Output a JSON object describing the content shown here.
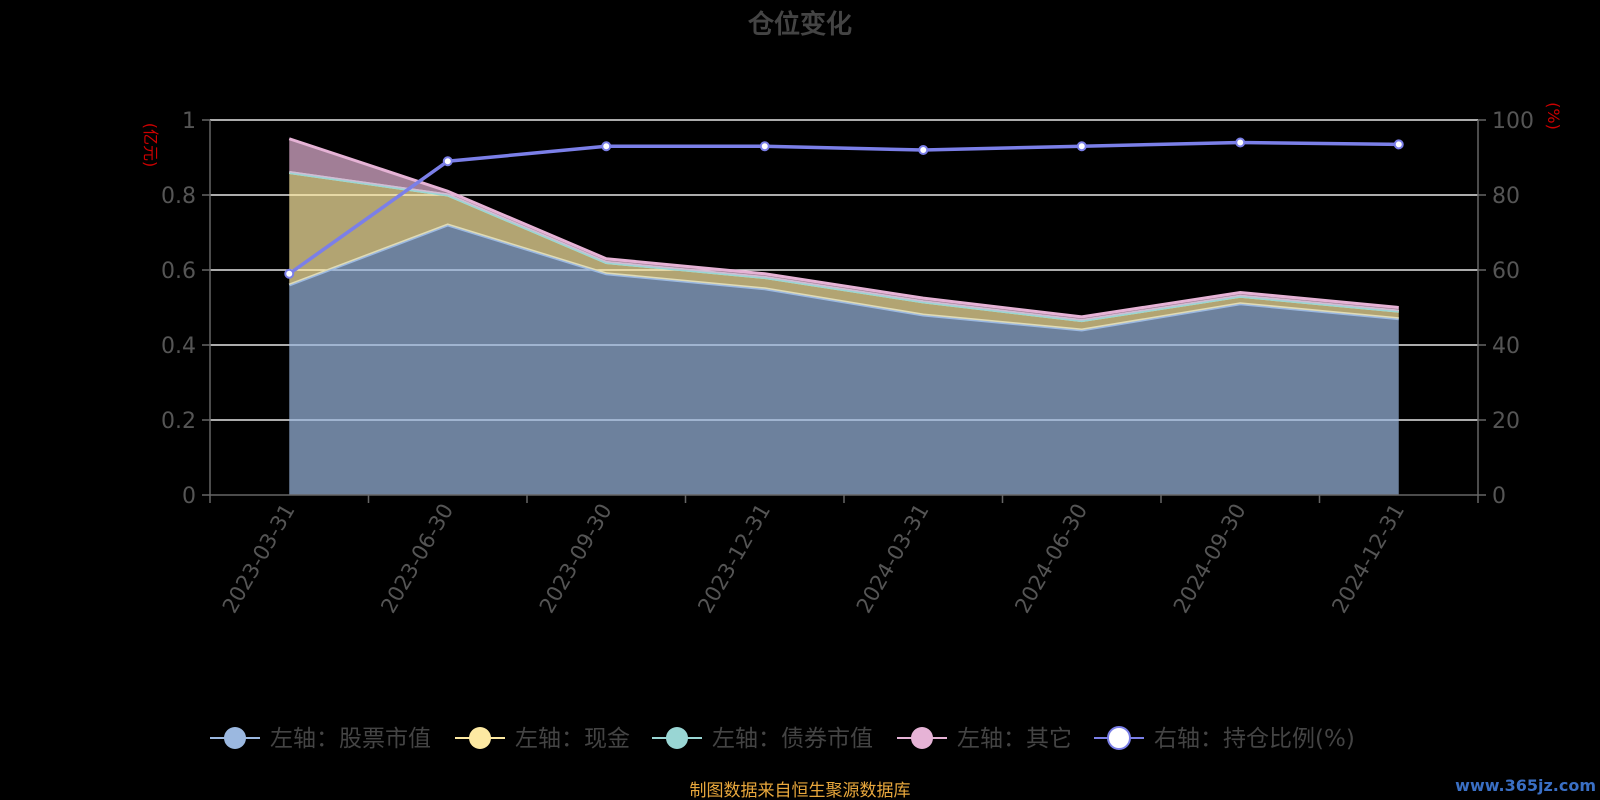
{
  "chart_data": {
    "type": "area",
    "title": "仓位变化",
    "ylabel_left": "(亿元)",
    "ylabel_right": "(%)",
    "categories": [
      "2023-03-31",
      "2023-06-30",
      "2023-09-30",
      "2023-12-31",
      "2024-03-31",
      "2024-06-30",
      "2024-09-30",
      "2024-12-31"
    ],
    "ylim_left": [
      0,
      1
    ],
    "yticks_left": [
      "0",
      "0.2",
      "0.4",
      "0.6",
      "0.8",
      "1"
    ],
    "ylim_right": [
      0,
      100
    ],
    "yticks_right": [
      "0",
      "20",
      "40",
      "60",
      "80",
      "100"
    ],
    "grid": true,
    "legend_position": "bottom",
    "series": [
      {
        "name": "左轴：股票市值",
        "axis": "left",
        "stack": true,
        "color": "#9bb8e0",
        "values": [
          0.56,
          0.72,
          0.59,
          0.55,
          0.48,
          0.44,
          0.51,
          0.47
        ]
      },
      {
        "name": "左轴：现金",
        "axis": "left",
        "stack": true,
        "color": "#fde9a2",
        "values": [
          0.3,
          0.08,
          0.03,
          0.03,
          0.035,
          0.025,
          0.02,
          0.02
        ]
      },
      {
        "name": "左轴：债券市值",
        "axis": "left",
        "stack": true,
        "color": "#99d6d4",
        "values": [
          0,
          0,
          0,
          0,
          0,
          0,
          0,
          0
        ]
      },
      {
        "name": "左轴：其它",
        "axis": "left",
        "stack": true,
        "color": "#e6b3d6",
        "values": [
          0.09,
          0.01,
          0.01,
          0.01,
          0.01,
          0.01,
          0.01,
          0.01
        ]
      },
      {
        "name": "右轴：持仓比例(%)",
        "axis": "right",
        "color": "#7b7fe8",
        "values": [
          59,
          89,
          93,
          93,
          92,
          93,
          94,
          93.5
        ]
      }
    ]
  },
  "footer": {
    "source": "制图数据来自恒生聚源数据库",
    "watermark": "www.365jz.com"
  }
}
